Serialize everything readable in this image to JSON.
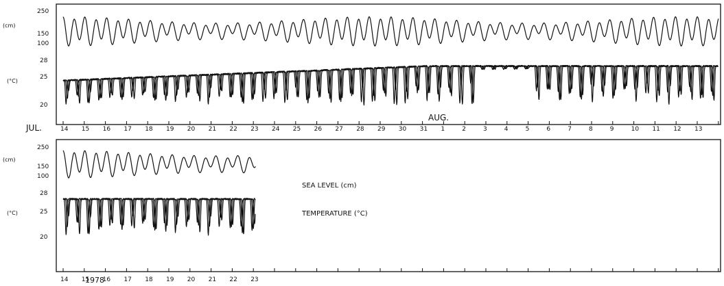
{
  "chart_data": [
    {
      "type": "line",
      "panel": "top",
      "month_labels": [
        "JUL.",
        "AUG."
      ],
      "x_tick_labels": [
        "14",
        "15",
        "16",
        "17",
        "18",
        "19",
        "20",
        "21",
        "22",
        "23",
        "24",
        "25",
        "26",
        "27",
        "28",
        "29",
        "30",
        "31",
        "1",
        "2",
        "3",
        "4",
        "5",
        "6",
        "7",
        "8",
        "9",
        "10",
        "11",
        "12",
        "13"
      ],
      "sea_level": {
        "unit_label": "(cm)",
        "y_ticks": [
          "250",
          "150",
          "100"
        ],
        "ylim": [
          90,
          255
        ],
        "x_range_days": [
          0,
          31
        ],
        "mean": 165,
        "amp_semidiurnal": 40,
        "amp_diurnal": 14,
        "amp_modulation": 0.35
      },
      "temperature": {
        "unit_label": "(°C)",
        "y_ticks": [
          "28",
          "25",
          "20"
        ],
        "ylim": [
          18,
          28.5
        ],
        "x_range_days": [
          0,
          31
        ],
        "series_count": 3,
        "baseline_start": 24,
        "baseline_end": 27,
        "dip_range": [
          19,
          23.5
        ]
      }
    },
    {
      "type": "line",
      "panel": "bottom",
      "x_tick_labels": [
        "14",
        "15",
        "16",
        "17",
        "18",
        "19",
        "20",
        "21",
        "22",
        "23"
      ],
      "year_label": "1978",
      "legend": [
        "SEA LEVEL  (cm)",
        "TEMPERATURE  (°C)"
      ],
      "sea_level": {
        "unit_label": "(cm)",
        "y_ticks": [
          "250",
          "150",
          "100"
        ],
        "ylim": [
          90,
          255
        ],
        "x_range_days": [
          0,
          9.1
        ],
        "mean": 170,
        "amp_semidiurnal": 42,
        "amp_diurnal": 14,
        "amp_modulation": 0.3
      },
      "temperature": {
        "unit_label": "(°C)",
        "y_ticks": [
          "28",
          "25",
          "20"
        ],
        "ylim": [
          18,
          28.5
        ],
        "x_range_days": [
          0,
          9.1
        ],
        "series_count": 3,
        "baseline_start": 27,
        "baseline_end": 27,
        "dip_range": [
          19.5,
          22
        ]
      }
    }
  ]
}
